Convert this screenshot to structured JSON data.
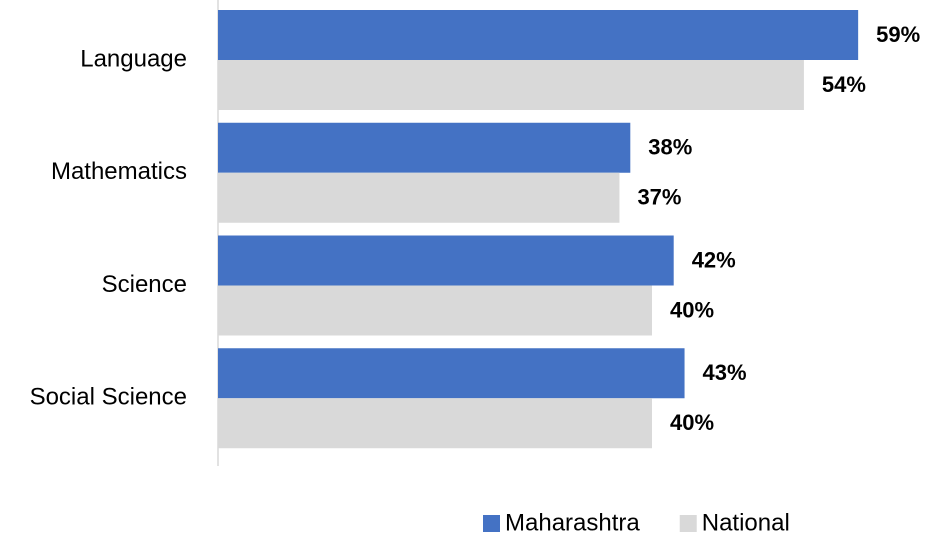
{
  "chart_data": {
    "type": "hbar",
    "categories": [
      "Language",
      "Mathematics",
      "Science",
      "Social Science"
    ],
    "series": [
      {
        "name": "Maharashtra",
        "color": "#4472c4",
        "values": [
          59,
          38,
          42,
          43
        ],
        "value_labels": [
          "59%",
          "38%",
          "42%",
          "43%"
        ]
      },
      {
        "name": "National",
        "color": "#d9d9d9",
        "values": [
          54,
          37,
          40,
          40
        ],
        "value_labels": [
          "54%",
          "37%",
          "40%",
          "40%"
        ]
      }
    ],
    "xlim": [
      0,
      60
    ],
    "legend": "bottom"
  }
}
